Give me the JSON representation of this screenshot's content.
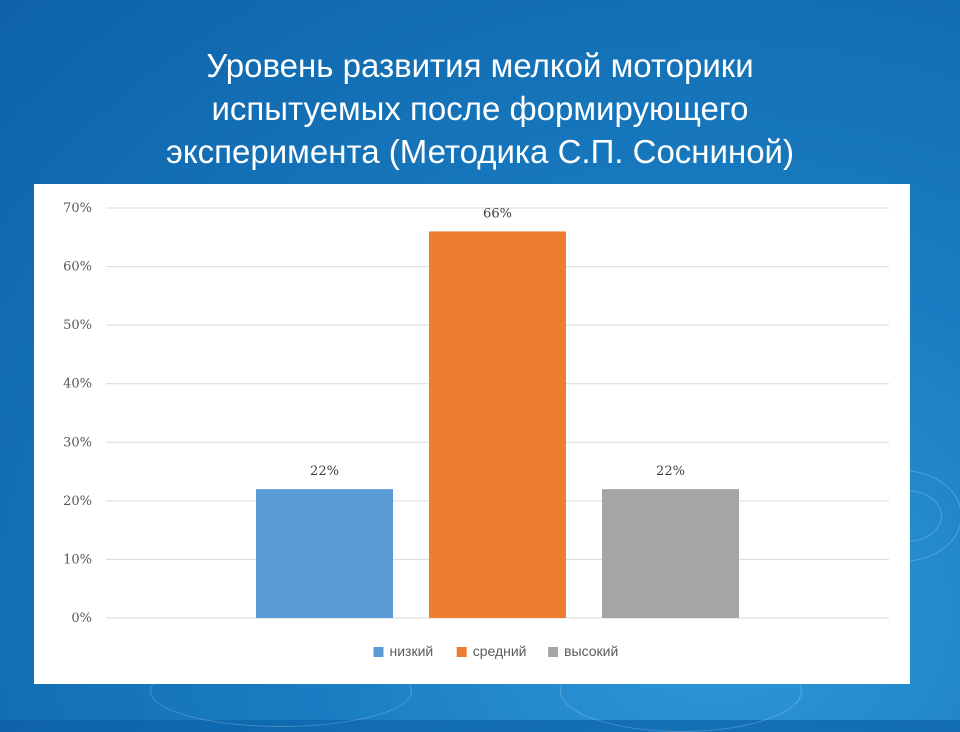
{
  "slide": {
    "title_lines": [
      "Уровень развития мелкой моторики",
      "испытуемых после формирующего",
      "эксперимента (Методика С.П. Сосниной)"
    ]
  },
  "colors": {
    "background": "#1a7dc2",
    "gridline": "#d9d9d9"
  },
  "chart_data": {
    "type": "bar",
    "title": "Уровень развития мелкой моторики испытуемых после формирующего эксперимента (Методика С.П. Сосниной)",
    "xlabel": "",
    "ylabel": "",
    "ylim": [
      0,
      70
    ],
    "y_ticks": [
      "0%",
      "10%",
      "20%",
      "30%",
      "40%",
      "50%",
      "60%",
      "70%"
    ],
    "grid": true,
    "legend_position": "bottom",
    "series": [
      {
        "name": "низкий",
        "value": 22,
        "label": "22%",
        "color": "#5b9bd5"
      },
      {
        "name": "средний",
        "value": 66,
        "label": "66%",
        "color": "#ed7d31"
      },
      {
        "name": "высокий",
        "value": 22,
        "label": "22%",
        "color": "#a5a5a5"
      }
    ]
  }
}
